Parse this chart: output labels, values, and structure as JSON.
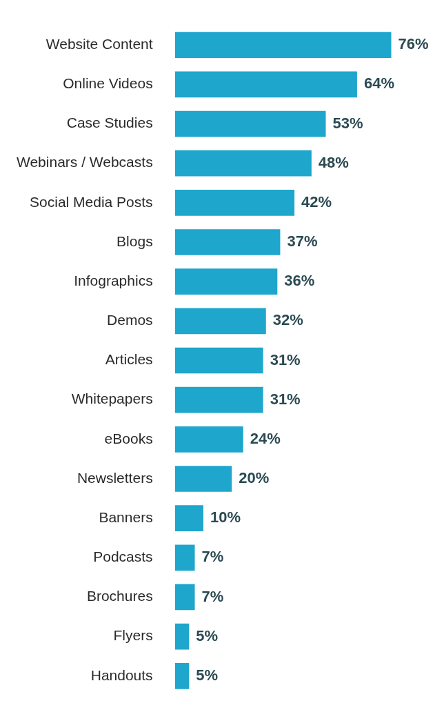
{
  "chart_data": {
    "type": "bar",
    "orientation": "horizontal",
    "categories": [
      "Website Content",
      "Online Videos",
      "Case Studies",
      "Webinars / Webcasts",
      "Social Media Posts",
      "Blogs",
      "Infographics",
      "Demos",
      "Articles",
      "Whitepapers",
      "eBooks",
      "Newsletters",
      "Banners",
      "Podcasts",
      "Brochures",
      "Flyers",
      "Handouts"
    ],
    "values": [
      76,
      64,
      53,
      48,
      42,
      37,
      36,
      32,
      31,
      31,
      24,
      20,
      10,
      7,
      7,
      5,
      5
    ],
    "value_labels": [
      "76%",
      "64%",
      "53%",
      "48%",
      "42%",
      "37%",
      "36%",
      "32%",
      "31%",
      "31%",
      "24%",
      "20%",
      "10%",
      "7%",
      "7%",
      "5%",
      "5%"
    ],
    "color": "#1ea6cc"
  }
}
